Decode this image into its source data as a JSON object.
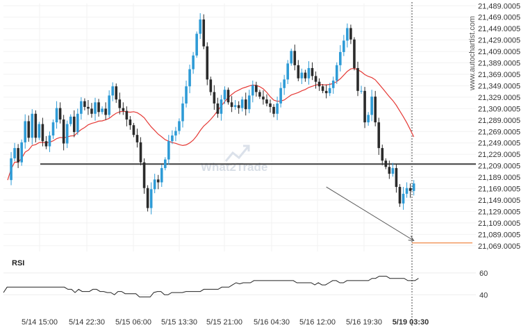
{
  "chart_data": [
    {
      "type": "candlestick",
      "x_tick_labels": [
        "5/14 15:00",
        "5/14 22:30",
        "5/15 06:00",
        "5/15 13:30",
        "5/15 21:00",
        "5/16 04:30",
        "5/16 12:00",
        "5/16 19:30",
        "5/19 03:30"
      ],
      "y_tick_labels": [
        "21,069.0005",
        "21,089.0005",
        "21,109.0005",
        "21,129.0005",
        "21,149.0005",
        "21,169.0005",
        "21,189.0005",
        "21,209.0005",
        "21,229.0005",
        "21,249.0005",
        "21,269.0005",
        "21,289.0005",
        "21,309.0005",
        "21,329.0005",
        "21,349.0005",
        "21,369.0005",
        "21,389.0005",
        "21,409.0005",
        "21,429.0005",
        "21,449.0005",
        "21,469.0005",
        "21,489.0005"
      ],
      "ylim": [
        21059,
        21493
      ],
      "support_level": 21212,
      "target_level": 21074,
      "projection": {
        "from_index": 91,
        "from_value": 21172,
        "to_index": 116,
        "to_value": 21078
      },
      "highlight_x_label": "5/19 03:30",
      "moving_average_color": "#e53935",
      "up_color": "#2e9bd6",
      "down_color": "#2b2b2b",
      "closes": [
        21184,
        21222,
        21240,
        21215,
        21250,
        21287,
        21258,
        21300,
        21258,
        21282,
        21252,
        21243,
        21262,
        21285,
        21310,
        21290,
        21248,
        21282,
        21295,
        21268,
        21300,
        21322,
        21312,
        21309,
        21300,
        21320,
        21303,
        21309,
        21298,
        21332,
        21348,
        21325,
        21310,
        21305,
        21290,
        21280,
        21263,
        21250,
        21215,
        21170,
        21135,
        21168,
        21185,
        21180,
        21205,
        21220,
        21252,
        21262,
        21270,
        21287,
        21318,
        21348,
        21378,
        21402,
        21440,
        21465,
        21418,
        21360,
        21338,
        21318,
        21300,
        21325,
        21342,
        21320,
        21312,
        21315,
        21310,
        21325,
        21308,
        21332,
        21350,
        21338,
        21330,
        21325,
        21318,
        21312,
        21300,
        21318,
        21345,
        21360,
        21388,
        21410,
        21385,
        21362,
        21372,
        21362,
        21380,
        21366,
        21356,
        21348,
        21340,
        21336,
        21345,
        21358,
        21385,
        21408,
        21428,
        21450,
        21430,
        21380,
        21340,
        21340,
        21285,
        21298,
        21330,
        21285,
        21240,
        21218,
        21207,
        21195,
        21205,
        21172,
        21143,
        21160,
        21170,
        21165,
        21178
      ],
      "rsi": {
        "title": "RSI",
        "ylim": [
          30,
          65
        ],
        "y_tick_labels": [
          "40",
          "60"
        ],
        "values": [
          42,
          47,
          47,
          47,
          47,
          47,
          47,
          47,
          47,
          47,
          47,
          47,
          47,
          47,
          47,
          47,
          47,
          47,
          45,
          45,
          42,
          45,
          43,
          43,
          43,
          45,
          45,
          43,
          43,
          42,
          42,
          40,
          43,
          43,
          41,
          41,
          41,
          41,
          38,
          38,
          38,
          38,
          42,
          43,
          43,
          40,
          40,
          42,
          42,
          42,
          42,
          43,
          43,
          43,
          43,
          43,
          45,
          45,
          45,
          45,
          45,
          47,
          47,
          47,
          49,
          51,
          50,
          51,
          51,
          51,
          53,
          53,
          53,
          53,
          53,
          53,
          53,
          53,
          53,
          53,
          53,
          53,
          51,
          51,
          51,
          51,
          51,
          49,
          51,
          49,
          49,
          51,
          53,
          53,
          51,
          51,
          53,
          53,
          53,
          53,
          53,
          53,
          53,
          55,
          55,
          57,
          57,
          57,
          55,
          55,
          55,
          55,
          55,
          53,
          53,
          53,
          55
        ]
      }
    }
  ],
  "watermark": {
    "side": "www.autochartist.com",
    "center": "What2Trade"
  }
}
